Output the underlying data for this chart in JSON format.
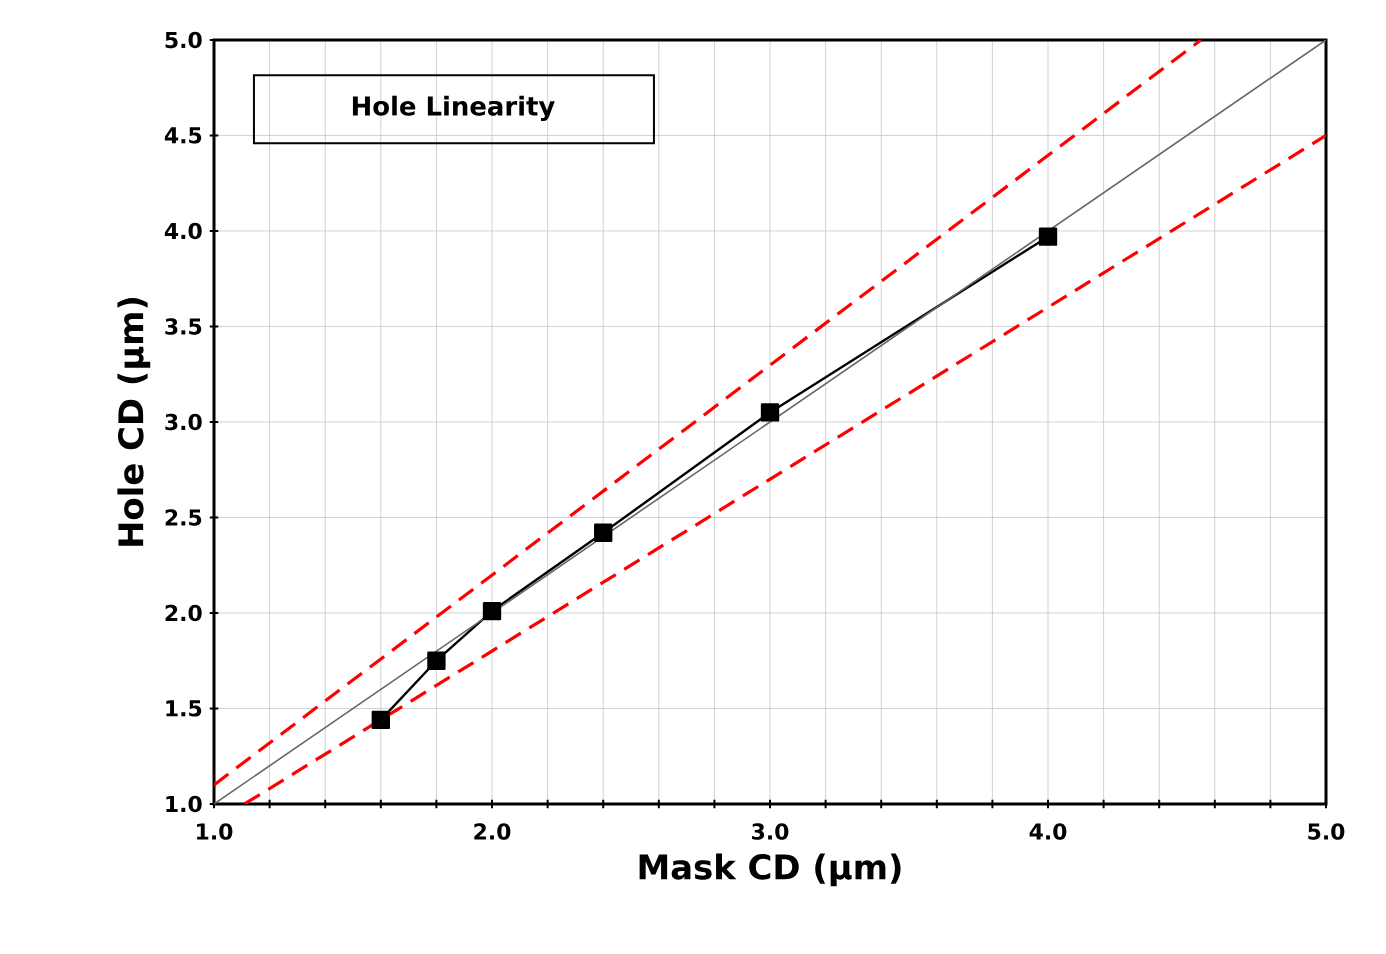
{
  "chart_data": {
    "type": "line",
    "title": "Hole Linearity",
    "xlabel": "Mask CD (µm)",
    "ylabel": "Hole CD (µm)",
    "xlim": [
      1.0,
      5.0
    ],
    "ylim": [
      1.0,
      5.0
    ],
    "xticks": [
      {
        "value": 1.0,
        "label": "1.0"
      },
      {
        "value": 1.2,
        "label": null
      },
      {
        "value": 1.4,
        "label": null
      },
      {
        "value": 1.6,
        "label": null
      },
      {
        "value": 1.8,
        "label": null
      },
      {
        "value": 2.0,
        "label": "2.0"
      },
      {
        "value": 2.2,
        "label": null
      },
      {
        "value": 2.4,
        "label": null
      },
      {
        "value": 2.6,
        "label": null
      },
      {
        "value": 2.8,
        "label": null
      },
      {
        "value": 3.0,
        "label": "3.0"
      },
      {
        "value": 3.2,
        "label": null
      },
      {
        "value": 3.4,
        "label": null
      },
      {
        "value": 3.6,
        "label": null
      },
      {
        "value": 3.8,
        "label": null
      },
      {
        "value": 4.0,
        "label": "4.0"
      },
      {
        "value": 4.2,
        "label": null
      },
      {
        "value": 4.4,
        "label": null
      },
      {
        "value": 4.6,
        "label": null
      },
      {
        "value": 4.8,
        "label": null
      },
      {
        "value": 5.0,
        "label": "5.0"
      }
    ],
    "yticks": [
      {
        "value": 1.0,
        "label": "1.0"
      },
      {
        "value": 1.5,
        "label": "1.5"
      },
      {
        "value": 2.0,
        "label": "2.0"
      },
      {
        "value": 2.5,
        "label": "2.5"
      },
      {
        "value": 3.0,
        "label": "3.0"
      },
      {
        "value": 3.5,
        "label": "3.5"
      },
      {
        "value": 4.0,
        "label": "4.0"
      },
      {
        "value": 4.5,
        "label": "4.5"
      },
      {
        "value": 5.0,
        "label": "5.0"
      }
    ],
    "grid": true,
    "series": [
      {
        "color": "#000000",
        "marker": "square",
        "line_style": "solid",
        "x": [
          1.6,
          1.8,
          2.0,
          2.4,
          3.0,
          4.0
        ],
        "values": [
          1.44,
          1.75,
          2.01,
          2.42,
          3.05,
          3.97
        ]
      },
      {
        "color": "#666666",
        "line_style": "solid",
        "x": [
          1.0,
          5.0
        ],
        "values": [
          1.0,
          5.0
        ]
      },
      {
        "color": "#ff0000",
        "line_style": "dashed",
        "x": [
          1.0,
          4.55
        ],
        "values": [
          1.1,
          5.0
        ]
      },
      {
        "color": "#ff0000",
        "line_style": "dashed",
        "x": [
          1.11,
          5.0
        ],
        "values": [
          1.0,
          4.5
        ]
      }
    ]
  }
}
